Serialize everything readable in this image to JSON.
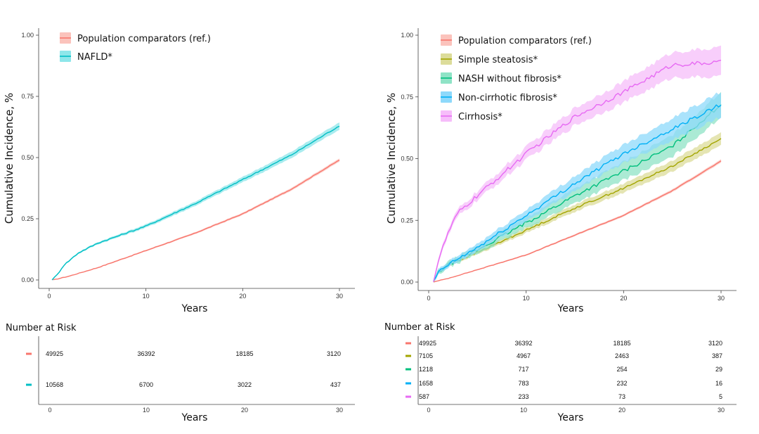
{
  "chart_data": [
    {
      "type": "line",
      "panel": "left",
      "ylabel": "Cumulative Incidence, %",
      "xlabel": "Years",
      "xlim": [
        0,
        30
      ],
      "ylim": [
        0,
        1
      ],
      "xticks": [
        "0",
        "10",
        "20",
        "30"
      ],
      "yticks": [
        "0.00",
        "0.25",
        "0.50",
        "0.75",
        "1.00"
      ],
      "legend_position": "top-left",
      "series": [
        {
          "name": "Population comparators (ref.)",
          "color": "#F8766D",
          "fill": "#FBC3BC",
          "x": [
            0.4,
            2,
            5,
            10,
            15,
            20,
            25,
            30
          ],
          "y": [
            0.0,
            0.015,
            0.05,
            0.12,
            0.19,
            0.27,
            0.37,
            0.49
          ],
          "ci": 0.004
        },
        {
          "name": "NAFLD*",
          "color": "#00BFC4",
          "fill": "#8EE6EA",
          "x": [
            0.3,
            0.8,
            1.5,
            3,
            5,
            10,
            15,
            20,
            25,
            30
          ],
          "y": [
            0.0,
            0.02,
            0.06,
            0.11,
            0.15,
            0.22,
            0.31,
            0.41,
            0.51,
            0.63
          ],
          "ci": 0.009
        }
      ],
      "risk_table": {
        "title": "Number at Risk",
        "xlabel": "Years",
        "xticks": [
          "0",
          "10",
          "20",
          "30"
        ],
        "rows": [
          {
            "color": "#F8766D",
            "values": [
              "49925",
              "36392",
              "18185",
              "3120"
            ]
          },
          {
            "color": "#00BFC4",
            "values": [
              "10568",
              "6700",
              "3022",
              "437"
            ]
          }
        ]
      }
    },
    {
      "type": "line",
      "panel": "right",
      "ylabel": "Cumulative Incidence, %",
      "xlabel": "Years",
      "xlim": [
        0,
        30
      ],
      "ylim": [
        0,
        1
      ],
      "xticks": [
        "0",
        "10",
        "20",
        "30"
      ],
      "yticks": [
        "0.00",
        "0.25",
        "0.50",
        "0.75",
        "1.00"
      ],
      "legend_position": "top-left",
      "series": [
        {
          "name": "Population comparators (ref.)",
          "color": "#F8766D",
          "fill": "#FBC3BC",
          "x": [
            0.5,
            2,
            5,
            10,
            15,
            20,
            25,
            30
          ],
          "y": [
            0.0,
            0.015,
            0.05,
            0.11,
            0.19,
            0.27,
            0.37,
            0.49
          ],
          "ci": 0.004
        },
        {
          "name": "Simple steatosis*",
          "color": "#A3A500",
          "fill": "#DCDC9A",
          "x": [
            0.5,
            1,
            2,
            5,
            10,
            15,
            20,
            25,
            30
          ],
          "y": [
            0.0,
            0.04,
            0.07,
            0.12,
            0.21,
            0.3,
            0.38,
            0.47,
            0.58
          ],
          "ci": 0.015
        },
        {
          "name": "NASH without fibrosis*",
          "color": "#00BF7D",
          "fill": "#8FE3C6",
          "x": [
            0.5,
            1,
            2,
            5,
            10,
            15,
            20,
            25,
            30
          ],
          "y": [
            0.0,
            0.04,
            0.07,
            0.13,
            0.24,
            0.35,
            0.45,
            0.55,
            0.72
          ],
          "ci": 0.03
        },
        {
          "name": "Non-cirrhotic fibrosis*",
          "color": "#00B0F6",
          "fill": "#8ED9FB",
          "x": [
            0.5,
            1,
            2,
            5,
            10,
            15,
            20,
            25,
            30
          ],
          "y": [
            0.0,
            0.04,
            0.07,
            0.14,
            0.27,
            0.4,
            0.52,
            0.62,
            0.72
          ],
          "ci": 0.03
        },
        {
          "name": "Cirrhosis*",
          "color": "#E76BF3",
          "fill": "#F6BDFA",
          "x": [
            0.5,
            1,
            2,
            3,
            5,
            10,
            15,
            20,
            25,
            30
          ],
          "y": [
            0.0,
            0.09,
            0.2,
            0.28,
            0.35,
            0.52,
            0.67,
            0.77,
            0.88,
            0.89
          ],
          "ci": 0.035
        }
      ],
      "risk_table": {
        "title": "Number at Risk",
        "xlabel": "Years",
        "xticks": [
          "0",
          "10",
          "20",
          "30"
        ],
        "rows": [
          {
            "color": "#F8766D",
            "values": [
              "49925",
              "36392",
              "18185",
              "3120"
            ]
          },
          {
            "color": "#A3A500",
            "values": [
              "7105",
              "4967",
              "2463",
              "387"
            ]
          },
          {
            "color": "#00BF7D",
            "values": [
              "1218",
              "717",
              "254",
              "29"
            ]
          },
          {
            "color": "#00B0F6",
            "values": [
              "1658",
              "783",
              "232",
              "16"
            ]
          },
          {
            "color": "#E76BF3",
            "values": [
              "587",
              "233",
              "73",
              "5"
            ]
          }
        ]
      }
    }
  ]
}
